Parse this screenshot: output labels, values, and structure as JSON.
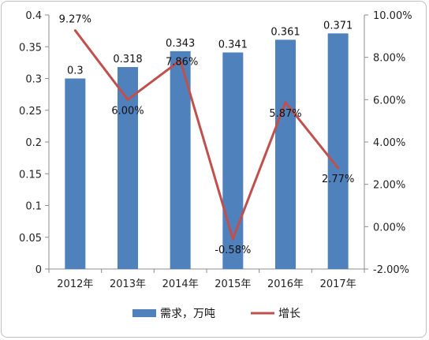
{
  "chart_data": {
    "type": "bar+line",
    "categories": [
      "2012年",
      "2013年",
      "2014年",
      "2015年",
      "2016年",
      "2017年"
    ],
    "series": [
      {
        "name": "需求，万吨",
        "type": "bar",
        "axis": "left",
        "values": [
          0.3,
          0.318,
          0.343,
          0.341,
          0.361,
          0.371
        ],
        "labels": [
          "0.3",
          "0.318",
          "0.343",
          "0.341",
          "0.361",
          "0.371"
        ],
        "color": "#4f81bd"
      },
      {
        "name": "增长",
        "type": "line",
        "axis": "right",
        "values": [
          9.27,
          6.0,
          7.86,
          -0.58,
          5.87,
          2.77
        ],
        "labels": [
          "9.27%",
          "6.00%",
          "7.86%",
          "-0.58%",
          "5.87%",
          "2.77%"
        ],
        "color": "#c0504d"
      }
    ],
    "y_left": {
      "range": [
        0,
        0.4
      ],
      "ticks": [
        0,
        0.05,
        0.1,
        0.15,
        0.2,
        0.25,
        0.3,
        0.35,
        0.4
      ],
      "tick_labels": [
        "0",
        "0.05",
        "0.1",
        "0.15",
        "0.2",
        "0.25",
        "0.3",
        "0.35",
        "0.4"
      ]
    },
    "y_right": {
      "range": [
        -2,
        10
      ],
      "ticks": [
        -2,
        0,
        2,
        4,
        6,
        8,
        10
      ],
      "tick_labels": [
        "-2.00%",
        "0.00%",
        "2.00%",
        "4.00%",
        "6.00%",
        "8.00%",
        "10.00%"
      ]
    },
    "grid": false,
    "legend_position": "bottom"
  }
}
